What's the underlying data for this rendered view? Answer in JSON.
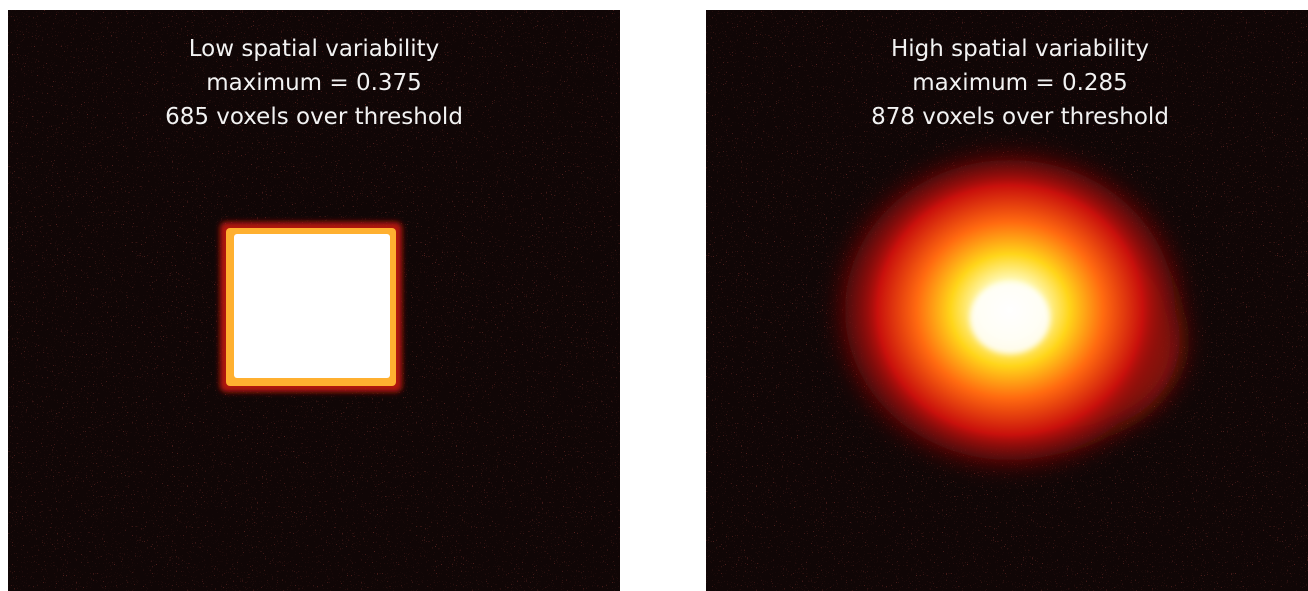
{
  "panels": [
    {
      "lines": [
        "Low spatial variability",
        "maximum = 0.375",
        "685 voxels over threshold"
      ]
    },
    {
      "lines": [
        "High spatial variability",
        "maximum = 0.285",
        "878 voxels over threshold"
      ]
    }
  ]
}
